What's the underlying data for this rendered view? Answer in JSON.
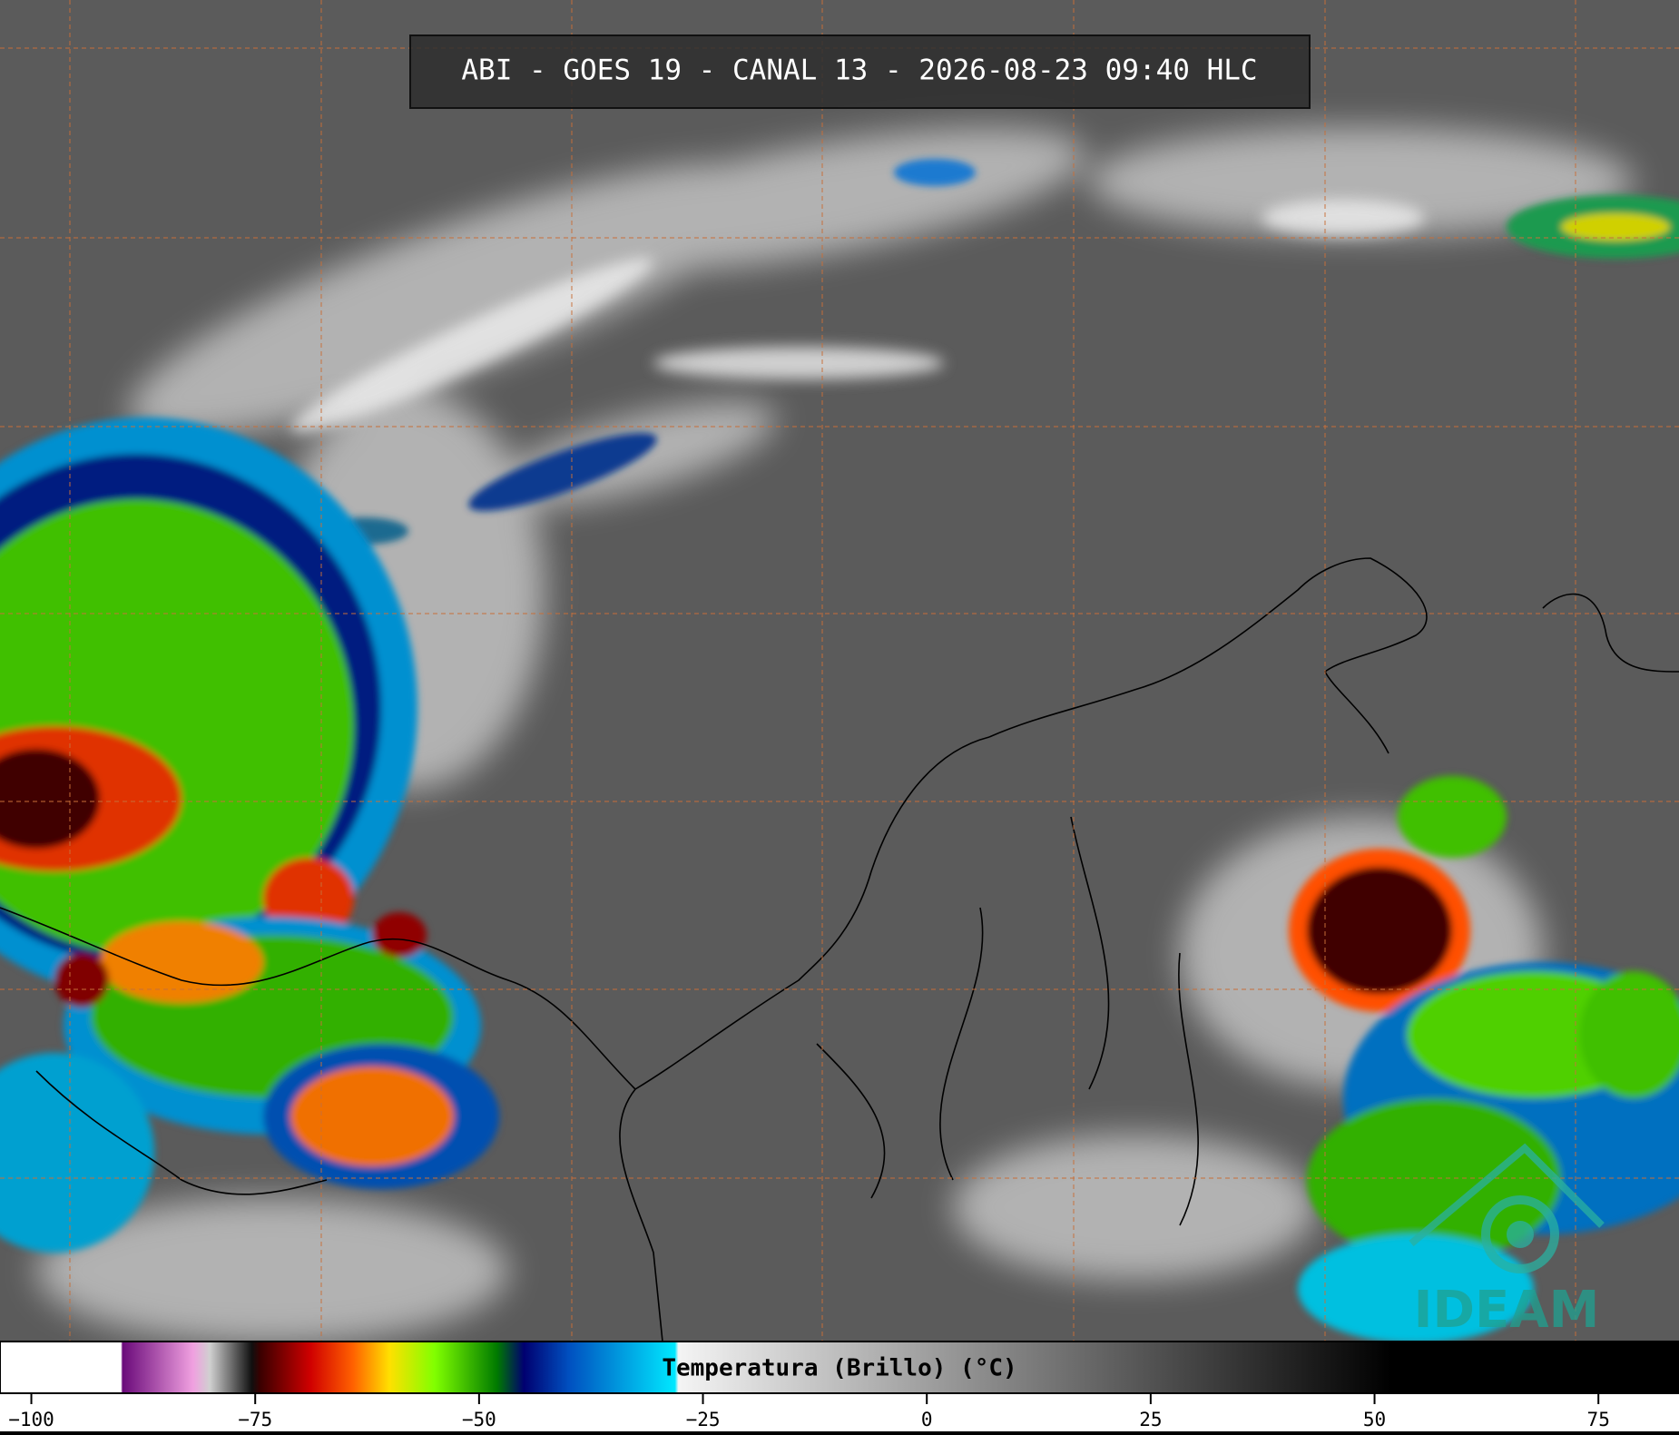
{
  "title": "ABI - GOES 19 - CANAL 13 - 2026-08-23 09:40 HLC",
  "colorbar": {
    "label": "Temperatura (Brillo) (°C)",
    "xlim": [
      -103.5,
      84
    ],
    "xticks": [
      {
        "value": -100,
        "label": "−100"
      },
      {
        "value": -75,
        "label": "−75"
      },
      {
        "value": -50,
        "label": "−50"
      },
      {
        "value": -25,
        "label": "−25"
      },
      0,
      25,
      50,
      75
    ]
  },
  "logo": "IDEAM"
}
